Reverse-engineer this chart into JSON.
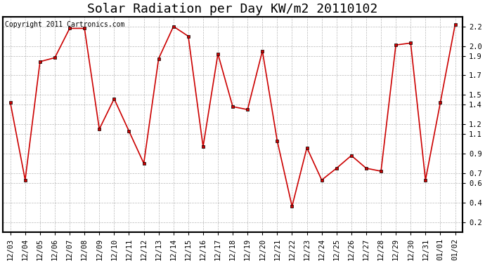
{
  "title": "Solar Radiation per Day KW/m2 20110102",
  "copyright_text": "Copyright 2011 Cartronics.com",
  "dates": [
    "12/03",
    "12/04",
    "12/05",
    "12/06",
    "12/07",
    "12/08",
    "12/09",
    "12/10",
    "12/11",
    "12/12",
    "12/13",
    "12/14",
    "12/15",
    "12/16",
    "12/17",
    "12/18",
    "12/19",
    "12/20",
    "12/21",
    "12/22",
    "12/23",
    "12/24",
    "12/25",
    "12/26",
    "12/27",
    "12/28",
    "12/29",
    "12/30",
    "12/31",
    "01/01",
    "01/02"
  ],
  "values": [
    1.42,
    0.63,
    1.84,
    1.88,
    2.18,
    2.18,
    1.15,
    1.46,
    1.13,
    0.8,
    1.87,
    2.2,
    2.1,
    0.97,
    1.92,
    1.38,
    1.35,
    1.95,
    1.03,
    0.36,
    0.96,
    0.63,
    0.75,
    0.88,
    0.75,
    0.72,
    2.01,
    2.03,
    0.63,
    1.42,
    2.22
  ],
  "line_color": "#cc0000",
  "marker_color": "#000000",
  "bg_color": "#ffffff",
  "plot_bg_color": "#ffffff",
  "grid_color": "#999999",
  "ylim": [
    0.1,
    2.3
  ],
  "yticks": [
    0.2,
    0.4,
    0.6,
    0.7,
    0.9,
    1.1,
    1.2,
    1.4,
    1.5,
    1.7,
    1.9,
    2.0,
    2.2
  ],
  "title_fontsize": 13,
  "tick_fontsize": 7.5,
  "copyright_fontsize": 7
}
